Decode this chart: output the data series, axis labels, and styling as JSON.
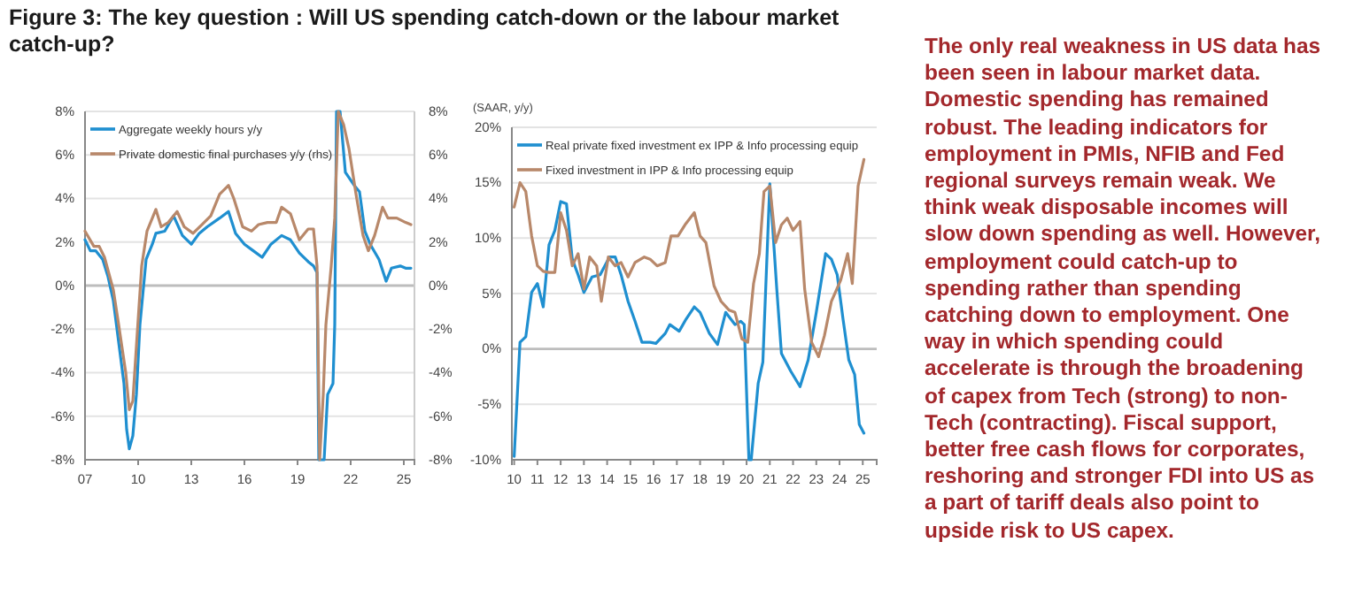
{
  "chart_data": [
    {
      "type": "line",
      "title": "Figure 3: The key question : Will US spending catch-down or the labour market catch-up?",
      "xlim": [
        2007,
        2025.6
      ],
      "xticks": [
        {
          "value": 2007,
          "label": "07"
        },
        {
          "value": 2010,
          "label": "10"
        },
        {
          "value": 2013,
          "label": "13"
        },
        {
          "value": 2016,
          "label": "16"
        },
        {
          "value": 2019,
          "label": "19"
        },
        {
          "value": 2022,
          "label": "22"
        },
        {
          "value": 2025,
          "label": "25"
        }
      ],
      "ylim": [
        -8,
        8
      ],
      "yticks": [
        {
          "value": -8,
          "label": "-8%"
        },
        {
          "value": -6,
          "label": "-6%"
        },
        {
          "value": -4,
          "label": "-4%"
        },
        {
          "value": -2,
          "label": "-2%"
        },
        {
          "value": 0,
          "label": "0%"
        },
        {
          "value": 2,
          "label": "2%"
        },
        {
          "value": 4,
          "label": "4%"
        },
        {
          "value": 6,
          "label": "6%"
        },
        {
          "value": 8,
          "label": "8%"
        }
      ],
      "y2lim": [
        -8,
        8
      ],
      "y2ticks": [
        {
          "value": -8,
          "label": "-8%"
        },
        {
          "value": -6,
          "label": "-6%"
        },
        {
          "value": -4,
          "label": "-4%"
        },
        {
          "value": -2,
          "label": "-2%"
        },
        {
          "value": 0,
          "label": "0%"
        },
        {
          "value": 2,
          "label": "2%"
        },
        {
          "value": 4,
          "label": "4%"
        },
        {
          "value": 6,
          "label": "6%"
        },
        {
          "value": 8,
          "label": "8%"
        }
      ],
      "grid": "y",
      "legend": "top left",
      "series": [
        {
          "name": "Aggregate weekly hours y/y",
          "color": "#1f8fd0",
          "x": [
            2007,
            2007.3,
            2007.6,
            2008.0,
            2008.3,
            2008.6,
            2008.9,
            2009.2,
            2009.35,
            2009.5,
            2009.7,
            2009.9,
            2010.1,
            2010.45,
            2010.8,
            2011.0,
            2011.5,
            2012.0,
            2012.5,
            2013.0,
            2013.45,
            2013.9,
            2014.6,
            2015.1,
            2015.5,
            2016.0,
            2016.5,
            2017.0,
            2017.5,
            2018.1,
            2018.6,
            2019.1,
            2019.6,
            2019.9,
            2020.1,
            2020.2,
            2020.5,
            2020.7,
            2021.0,
            2021.1,
            2021.2,
            2021.4,
            2021.7,
            2022.2,
            2022.5,
            2022.8,
            2023.1,
            2023.6,
            2024.0,
            2024.3,
            2024.8,
            2025.1,
            2025.4
          ],
          "values": [
            2.1,
            1.6,
            1.6,
            1.2,
            0.4,
            -0.7,
            -2.6,
            -4.5,
            -6.6,
            -7.5,
            -6.9,
            -5.0,
            -1.8,
            1.2,
            1.9,
            2.4,
            2.5,
            3.2,
            2.3,
            1.9,
            2.4,
            2.7,
            3.1,
            3.4,
            2.4,
            1.9,
            1.6,
            1.3,
            1.9,
            2.3,
            2.1,
            1.5,
            1.1,
            0.9,
            0.6,
            -8,
            -8,
            -5.0,
            -4.5,
            -1.8,
            8,
            8,
            5.2,
            4.6,
            4.3,
            2.5,
            1.9,
            1.2,
            0.2,
            0.8,
            0.9,
            0.8,
            0.8
          ]
        },
        {
          "name": "Private domestic final purchases y/y (rhs)",
          "color": "#b8886a",
          "axis": "y2",
          "x": [
            2007,
            2007.5,
            2007.8,
            2008.1,
            2008.6,
            2008.9,
            2009.3,
            2009.5,
            2009.7,
            2009.9,
            2010.2,
            2010.5,
            2011.0,
            2011.3,
            2011.7,
            2012.2,
            2012.6,
            2013.1,
            2013.6,
            2014.1,
            2014.6,
            2015.1,
            2015.4,
            2015.9,
            2016.4,
            2016.8,
            2017.3,
            2017.8,
            2018.1,
            2018.6,
            2019.1,
            2019.6,
            2019.9,
            2020.1,
            2020.25,
            2020.45,
            2020.6,
            2020.9,
            2021.1,
            2021.3,
            2021.6,
            2021.9,
            2022.3,
            2022.7,
            2023.0,
            2023.35,
            2023.8,
            2024.1,
            2024.6,
            2025.1,
            2025.4
          ],
          "values": [
            2.5,
            1.8,
            1.8,
            1.3,
            -0.2,
            -1.8,
            -4.0,
            -5.7,
            -5.3,
            -2.8,
            0.9,
            2.5,
            3.5,
            2.7,
            2.9,
            3.4,
            2.7,
            2.4,
            2.8,
            3.2,
            4.2,
            4.6,
            4.0,
            2.7,
            2.5,
            2.8,
            2.9,
            2.9,
            3.6,
            3.3,
            2.1,
            2.6,
            2.6,
            0.9,
            -8,
            -5.0,
            -1.8,
            0.9,
            3.1,
            8,
            7.4,
            6.3,
            4.2,
            2.3,
            1.6,
            2.3,
            3.6,
            3.1,
            3.1,
            2.9,
            2.8
          ]
        }
      ]
    },
    {
      "type": "line",
      "ylabel": "(SAAR, y/y)",
      "xlim": [
        2009.9,
        2025.6
      ],
      "xticks": [
        {
          "value": 2010,
          "label": "10"
        },
        {
          "value": 2011,
          "label": "11"
        },
        {
          "value": 2012,
          "label": "12"
        },
        {
          "value": 2013,
          "label": "13"
        },
        {
          "value": 2014,
          "label": "14"
        },
        {
          "value": 2015,
          "label": "15"
        },
        {
          "value": 2016,
          "label": "16"
        },
        {
          "value": 2017,
          "label": "17"
        },
        {
          "value": 2018,
          "label": "18"
        },
        {
          "value": 2019,
          "label": "19"
        },
        {
          "value": 2020,
          "label": "20"
        },
        {
          "value": 2021,
          "label": "21"
        },
        {
          "value": 2022,
          "label": "22"
        },
        {
          "value": 2023,
          "label": "23"
        },
        {
          "value": 2024,
          "label": "24"
        },
        {
          "value": 2025,
          "label": "25"
        }
      ],
      "ylim": [
        -10,
        20
      ],
      "yticks": [
        {
          "value": -10,
          "label": "-10%"
        },
        {
          "value": -5,
          "label": "-5%"
        },
        {
          "value": 0,
          "label": "0%"
        },
        {
          "value": 5,
          "label": "5%"
        },
        {
          "value": 10,
          "label": "10%"
        },
        {
          "value": 15,
          "label": "15%"
        },
        {
          "value": 20,
          "label": "20%"
        }
      ],
      "grid": "y",
      "legend": "top left",
      "series": [
        {
          "name": "Real private fixed investment ex IPP & Info processing equip",
          "color": "#1f8fd0",
          "x": [
            2010,
            2010.25,
            2010.5,
            2010.75,
            2011.0,
            2011.25,
            2011.5,
            2011.75,
            2012.0,
            2012.25,
            2012.5,
            2012.75,
            2013.0,
            2013.35,
            2013.7,
            2014.1,
            2014.35,
            2014.6,
            2014.9,
            2015.2,
            2015.5,
            2015.85,
            2016.1,
            2016.5,
            2016.7,
            2017.1,
            2017.4,
            2017.75,
            2018.0,
            2018.4,
            2018.75,
            2019.1,
            2019.5,
            2019.75,
            2019.9,
            2020.1,
            2020.2,
            2020.5,
            2020.7,
            2021.0,
            2021.3,
            2021.5,
            2021.9,
            2022.3,
            2022.65,
            2023.0,
            2023.4,
            2023.65,
            2023.9,
            2024.15,
            2024.4,
            2024.65,
            2024.85,
            2025.05
          ],
          "values": [
            -9.7,
            0.6,
            1.1,
            5.1,
            5.9,
            3.8,
            9.4,
            10.7,
            13.3,
            13.1,
            8.1,
            6.7,
            5.1,
            6.5,
            6.7,
            8.3,
            8.3,
            6.7,
            4.3,
            2.5,
            0.6,
            0.6,
            0.5,
            1.4,
            2.2,
            1.6,
            2.7,
            3.8,
            3.3,
            1.4,
            0.4,
            3.3,
            2.2,
            2.5,
            2.2,
            -10,
            -10,
            -3.1,
            -1.2,
            14.9,
            5.4,
            -0.4,
            -2.0,
            -3.4,
            -1.0,
            3.3,
            8.6,
            8.1,
            6.7,
            2.7,
            -1.0,
            -2.3,
            -6.8,
            -7.6
          ]
        },
        {
          "name": "Fixed investment in IPP & Info processing equip",
          "color": "#b8886a",
          "x": [
            2010,
            2010.25,
            2010.5,
            2010.75,
            2011.0,
            2011.25,
            2011.5,
            2011.75,
            2012.0,
            2012.25,
            2012.5,
            2012.75,
            2013.0,
            2013.25,
            2013.55,
            2013.75,
            2014.05,
            2014.35,
            2014.6,
            2014.9,
            2015.2,
            2015.6,
            2015.85,
            2016.15,
            2016.5,
            2016.75,
            2017.05,
            2017.35,
            2017.75,
            2018.0,
            2018.25,
            2018.6,
            2018.9,
            2019.25,
            2019.5,
            2019.8,
            2020.05,
            2020.3,
            2020.55,
            2020.75,
            2021.0,
            2021.25,
            2021.5,
            2021.75,
            2022.0,
            2022.3,
            2022.5,
            2022.8,
            2023.1,
            2023.35,
            2023.65,
            2024.05,
            2024.35,
            2024.55,
            2024.8,
            2025.05
          ],
          "values": [
            12.8,
            15.0,
            14.2,
            10.2,
            7.5,
            7.0,
            6.9,
            6.9,
            12.3,
            10.7,
            7.5,
            8.6,
            5.4,
            8.3,
            7.5,
            4.3,
            8.3,
            7.5,
            7.8,
            6.5,
            7.8,
            8.3,
            8.1,
            7.5,
            7.8,
            10.2,
            10.2,
            11.2,
            12.3,
            10.2,
            9.6,
            5.7,
            4.3,
            3.5,
            3.3,
            0.9,
            0.6,
            5.9,
            8.6,
            14.2,
            14.7,
            9.6,
            11.2,
            11.8,
            10.7,
            11.5,
            5.4,
            0.6,
            -0.7,
            1.2,
            4.3,
            6.2,
            8.6,
            5.9,
            14.7,
            17.1
          ]
        }
      ]
    },
    {
      "type": "other",
      "annotations": [
        "The only real weakness in US data has been seen in labour market data. Domestic spending has remained robust. The leading indicators for employment in PMIs, NFIB and Fed regional surveys remain weak. We think weak disposable incomes will slow down spending as well. However, employment could catch-up to spending rather than spending catching down to employment. One way in which spending could accelerate is through the broadening of capex from Tech (strong) to non-Tech (contracting). Fiscal support, better free cash flows for corporates, reshoring and stronger FDI into US as a part of tariff deals also point to upside risk to US capex."
      ]
    }
  ]
}
